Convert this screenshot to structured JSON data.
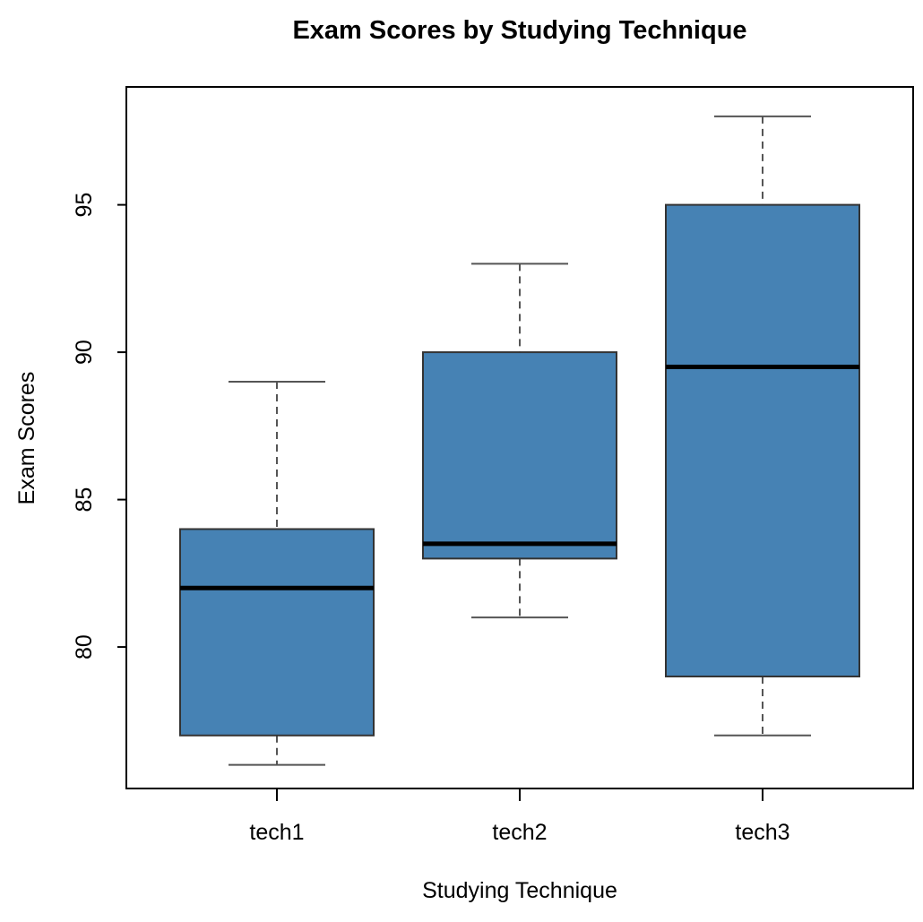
{
  "chart_data": {
    "type": "boxplot",
    "title": "Exam Scores by Studying Technique",
    "xlabel": "Studying Technique",
    "ylabel": "Exam Scores",
    "categories": [
      "tech1",
      "tech2",
      "tech3"
    ],
    "boxes": [
      {
        "name": "tech1",
        "min": 76,
        "q1": 77,
        "median": 82,
        "q3": 84,
        "max": 89
      },
      {
        "name": "tech2",
        "min": 81,
        "q1": 83,
        "median": 83.5,
        "q3": 90,
        "max": 93
      },
      {
        "name": "tech3",
        "min": 77,
        "q1": 79,
        "median": 89.5,
        "q3": 95,
        "max": 98
      }
    ],
    "yticks": [
      80,
      85,
      90,
      95
    ],
    "ylim": [
      75.2,
      99.0
    ],
    "grid": false,
    "box_color": "#4682B4",
    "median_color": "#000000",
    "whisker_color": "#555555"
  }
}
